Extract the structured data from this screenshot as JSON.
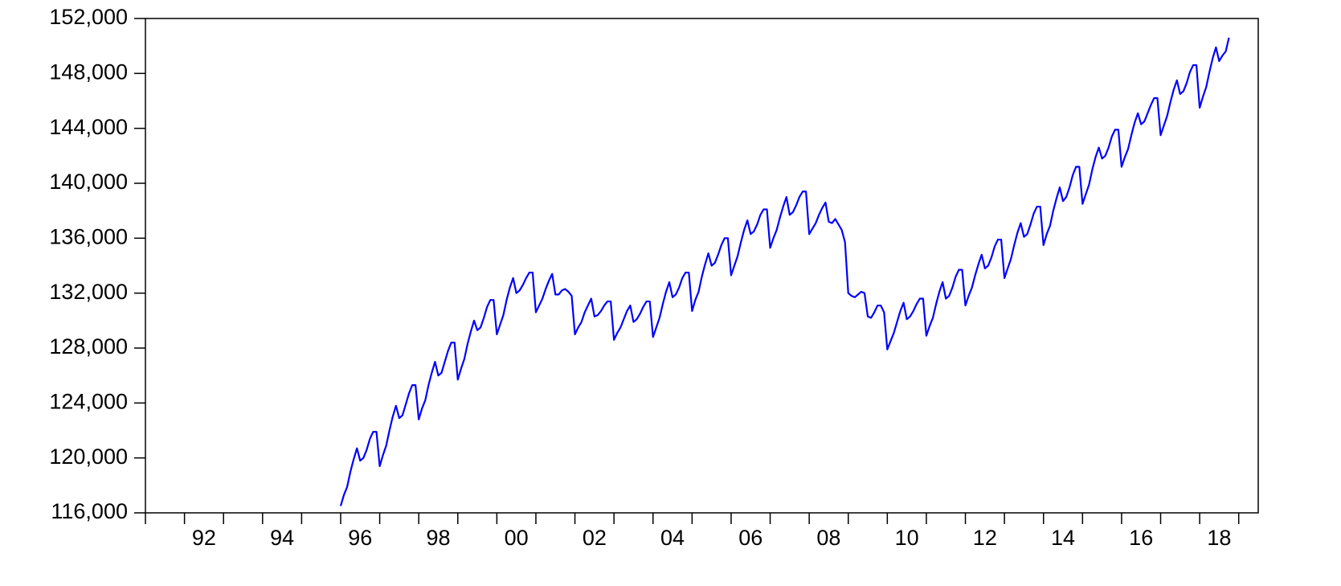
{
  "chart_data": {
    "type": "line",
    "x": [
      1996,
      1996.083,
      1996.167,
      1996.25,
      1996.333,
      1996.417,
      1996.5,
      1996.583,
      1996.667,
      1996.75,
      1996.833,
      1996.917,
      1997,
      1997.083,
      1997.167,
      1997.25,
      1997.333,
      1997.417,
      1997.5,
      1997.583,
      1997.667,
      1997.75,
      1997.833,
      1997.917,
      1998,
      1998.083,
      1998.167,
      1998.25,
      1998.333,
      1998.417,
      1998.5,
      1998.583,
      1998.667,
      1998.75,
      1998.833,
      1998.917,
      1999,
      1999.083,
      1999.167,
      1999.25,
      1999.333,
      1999.417,
      1999.5,
      1999.583,
      1999.667,
      1999.75,
      1999.833,
      1999.917,
      2000,
      2000.083,
      2000.167,
      2000.25,
      2000.333,
      2000.417,
      2000.5,
      2000.583,
      2000.667,
      2000.75,
      2000.833,
      2000.917,
      2001,
      2001.083,
      2001.167,
      2001.25,
      2001.333,
      2001.417,
      2001.5,
      2001.583,
      2001.667,
      2001.75,
      2001.833,
      2001.917,
      2002,
      2002.083,
      2002.167,
      2002.25,
      2002.333,
      2002.417,
      2002.5,
      2002.583,
      2002.667,
      2002.75,
      2002.833,
      2002.917,
      2003,
      2003.083,
      2003.167,
      2003.25,
      2003.333,
      2003.417,
      2003.5,
      2003.583,
      2003.667,
      2003.75,
      2003.833,
      2003.917,
      2004,
      2004.083,
      2004.167,
      2004.25,
      2004.333,
      2004.417,
      2004.5,
      2004.583,
      2004.667,
      2004.75,
      2004.833,
      2004.917,
      2005,
      2005.083,
      2005.167,
      2005.25,
      2005.333,
      2005.417,
      2005.5,
      2005.583,
      2005.667,
      2005.75,
      2005.833,
      2005.917,
      2006,
      2006.083,
      2006.167,
      2006.25,
      2006.333,
      2006.417,
      2006.5,
      2006.583,
      2006.667,
      2006.75,
      2006.833,
      2006.917,
      2007,
      2007.083,
      2007.167,
      2007.25,
      2007.333,
      2007.417,
      2007.5,
      2007.583,
      2007.667,
      2007.75,
      2007.833,
      2007.917,
      2008,
      2008.083,
      2008.167,
      2008.25,
      2008.333,
      2008.417,
      2008.5,
      2008.583,
      2008.667,
      2008.75,
      2008.833,
      2008.917,
      2009,
      2009.083,
      2009.167,
      2009.25,
      2009.333,
      2009.417,
      2009.5,
      2009.583,
      2009.667,
      2009.75,
      2009.833,
      2009.917,
      2010,
      2010.083,
      2010.167,
      2010.25,
      2010.333,
      2010.417,
      2010.5,
      2010.583,
      2010.667,
      2010.75,
      2010.833,
      2010.917,
      2011,
      2011.083,
      2011.167,
      2011.25,
      2011.333,
      2011.417,
      2011.5,
      2011.583,
      2011.667,
      2011.75,
      2011.833,
      2011.917,
      2012,
      2012.083,
      2012.167,
      2012.25,
      2012.333,
      2012.417,
      2012.5,
      2012.583,
      2012.667,
      2012.75,
      2012.833,
      2012.917,
      2013,
      2013.083,
      2013.167,
      2013.25,
      2013.333,
      2013.417,
      2013.5,
      2013.583,
      2013.667,
      2013.75,
      2013.833,
      2013.917,
      2014,
      2014.083,
      2014.167,
      2014.25,
      2014.333,
      2014.417,
      2014.5,
      2014.583,
      2014.667,
      2014.75,
      2014.833,
      2014.917,
      2015,
      2015.083,
      2015.167,
      2015.25,
      2015.333,
      2015.417,
      2015.5,
      2015.583,
      2015.667,
      2015.75,
      2015.833,
      2015.917,
      2016,
      2016.083,
      2016.167,
      2016.25,
      2016.333,
      2016.417,
      2016.5,
      2016.583,
      2016.667,
      2016.75,
      2016.833,
      2016.917,
      2017,
      2017.083,
      2017.167,
      2017.25,
      2017.333,
      2017.417,
      2017.5,
      2017.583,
      2017.667,
      2017.75,
      2017.833,
      2017.917,
      2018,
      2018.083,
      2018.167,
      2018.25,
      2018.333,
      2018.417,
      2018.5,
      2018.583,
      2018.667,
      2018.75
    ],
    "series": [
      {
        "color": "#0000ff",
        "values": [
          116500,
          117300,
          117900,
          119000,
          119900,
          120700,
          119800,
          120000,
          120600,
          121400,
          121900,
          121900,
          119400,
          120200,
          120900,
          122000,
          123000,
          123800,
          122900,
          123100,
          123900,
          124700,
          125300,
          125300,
          122800,
          123600,
          124200,
          125300,
          126200,
          127000,
          126000,
          126200,
          127000,
          127800,
          128400,
          128400,
          125700,
          126500,
          127200,
          128300,
          129200,
          130000,
          129300,
          129500,
          130200,
          131000,
          131500,
          131500,
          129000,
          129700,
          130400,
          131500,
          132400,
          133100,
          132000,
          132200,
          132600,
          133100,
          133500,
          133500,
          130600,
          131100,
          131600,
          132300,
          132900,
          133400,
          131900,
          131900,
          132200,
          132300,
          132100,
          131800,
          129000,
          129500,
          129900,
          130600,
          131100,
          131600,
          130300,
          130400,
          130700,
          131100,
          131400,
          131400,
          128600,
          129100,
          129500,
          130100,
          130700,
          131100,
          129900,
          130100,
          130500,
          131000,
          131400,
          131400,
          128800,
          129500,
          130200,
          131200,
          132100,
          132800,
          131700,
          131900,
          132400,
          133100,
          133500,
          133500,
          130700,
          131500,
          132100,
          133200,
          134100,
          134900,
          134000,
          134200,
          134800,
          135500,
          136000,
          136000,
          133300,
          134000,
          134700,
          135700,
          136600,
          137300,
          136300,
          136500,
          137000,
          137700,
          138100,
          138100,
          135300,
          136000,
          136600,
          137500,
          138300,
          139000,
          137700,
          137900,
          138400,
          139000,
          139400,
          139400,
          136300,
          136700,
          137100,
          137700,
          138200,
          138600,
          137200,
          137100,
          137400,
          137000,
          136600,
          135700,
          132000,
          131800,
          131700,
          131900,
          132100,
          132000,
          130300,
          130200,
          130600,
          131100,
          131100,
          130600,
          127900,
          128500,
          129100,
          129900,
          130700,
          131300,
          130100,
          130300,
          130700,
          131200,
          131600,
          131600,
          128900,
          129600,
          130200,
          131200,
          132100,
          132800,
          131600,
          131800,
          132400,
          133200,
          133700,
          133700,
          131100,
          131800,
          132400,
          133300,
          134100,
          134800,
          133800,
          134000,
          134600,
          135400,
          135900,
          135900,
          133100,
          133800,
          134500,
          135500,
          136400,
          137100,
          136100,
          136300,
          137000,
          137800,
          138300,
          138300,
          135500,
          136300,
          136900,
          138000,
          138900,
          139700,
          138700,
          139000,
          139700,
          140600,
          141200,
          141200,
          138500,
          139200,
          139900,
          141000,
          141900,
          142600,
          141800,
          142000,
          142600,
          143400,
          143900,
          143900,
          141200,
          141900,
          142500,
          143500,
          144400,
          145100,
          144300,
          144500,
          145100,
          145700,
          146200,
          146200,
          143500,
          144200,
          144900,
          145900,
          146800,
          147500,
          146500,
          146700,
          147300,
          148100,
          148600,
          148600,
          145500,
          146300,
          147000,
          148100,
          149100,
          149900,
          148900,
          149300,
          149600,
          150600
        ]
      }
    ],
    "xlim": [
      1991,
      2019.5
    ],
    "ylim": [
      116000,
      152000
    ],
    "yticks": [
      {
        "value": 116000,
        "label": "116,000"
      },
      {
        "value": 120000,
        "label": "120,000"
      },
      {
        "value": 124000,
        "label": "124,000"
      },
      {
        "value": 128000,
        "label": "128,000"
      },
      {
        "value": 132000,
        "label": "132,000"
      },
      {
        "value": 136000,
        "label": "136,000"
      },
      {
        "value": 140000,
        "label": "140,000"
      },
      {
        "value": 144000,
        "label": "144,000"
      },
      {
        "value": 148000,
        "label": "148,000"
      },
      {
        "value": 152000,
        "label": "152,000"
      }
    ],
    "xticks": [
      {
        "value": 1992.5,
        "label": "92"
      },
      {
        "value": 1994.5,
        "label": "94"
      },
      {
        "value": 1996.5,
        "label": "96"
      },
      {
        "value": 1998.5,
        "label": "98"
      },
      {
        "value": 2000.5,
        "label": "00"
      },
      {
        "value": 2002.5,
        "label": "02"
      },
      {
        "value": 2004.5,
        "label": "04"
      },
      {
        "value": 2006.5,
        "label": "06"
      },
      {
        "value": 2008.5,
        "label": "08"
      },
      {
        "value": 2010.5,
        "label": "10"
      },
      {
        "value": 2012.5,
        "label": "12"
      },
      {
        "value": 2014.5,
        "label": "14"
      },
      {
        "value": 2016.5,
        "label": "16"
      },
      {
        "value": 2018.5,
        "label": "18"
      }
    ],
    "xtick_marks": [
      1991,
      1992,
      1993,
      1994,
      1995,
      1996,
      1997,
      1998,
      1999,
      2000,
      2001,
      2002,
      2003,
      2004,
      2005,
      2006,
      2007,
      2008,
      2009,
      2010,
      2011,
      2012,
      2013,
      2014,
      2015,
      2016,
      2017,
      2018,
      2019
    ],
    "grid": false
  }
}
